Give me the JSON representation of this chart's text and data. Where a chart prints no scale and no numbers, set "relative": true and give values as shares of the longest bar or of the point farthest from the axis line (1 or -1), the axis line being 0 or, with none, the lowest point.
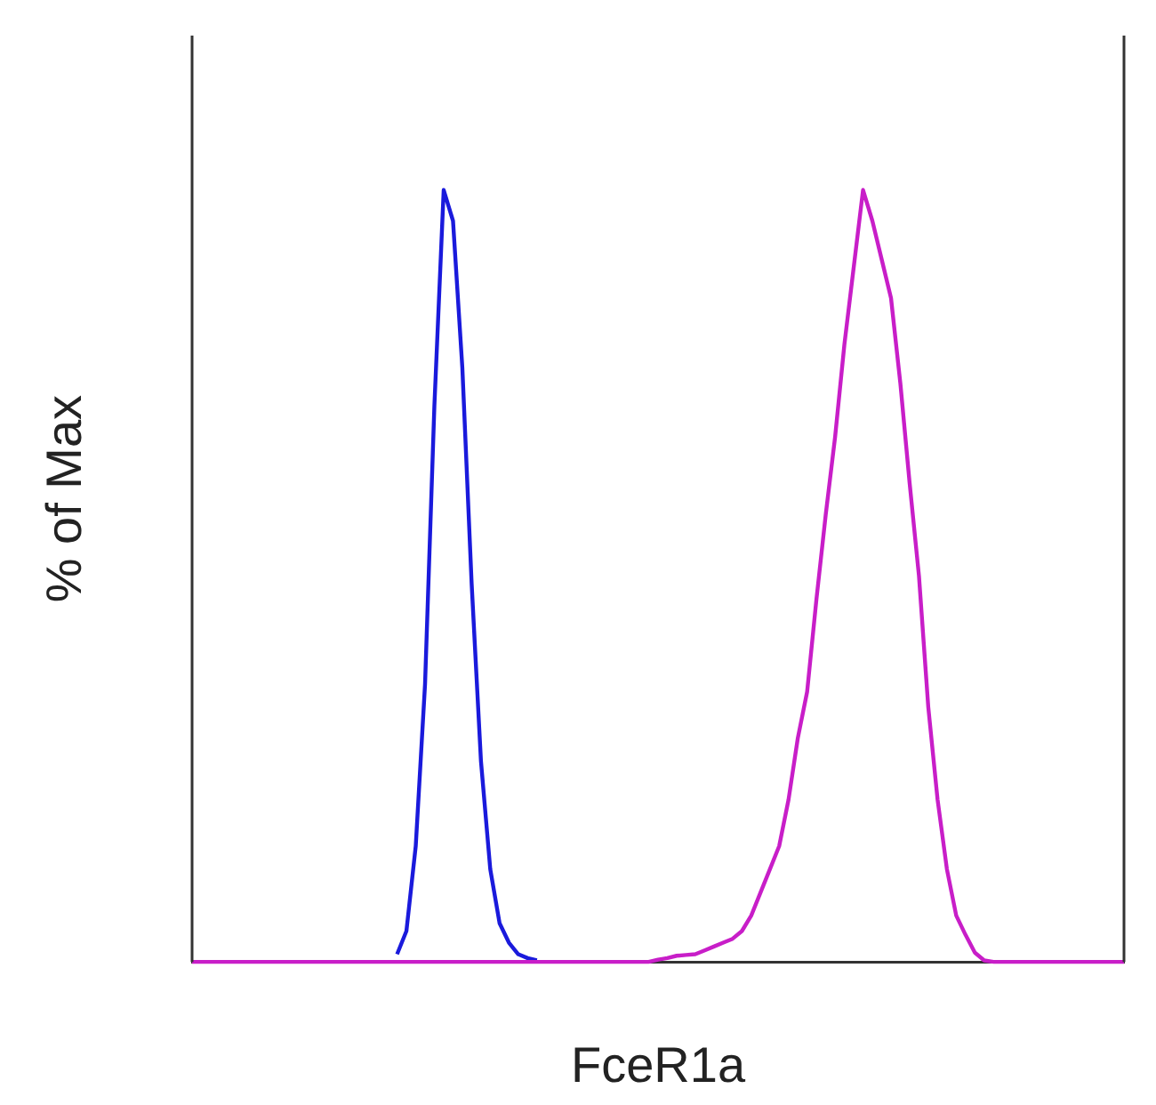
{
  "chart_data": {
    "type": "line",
    "relative": true,
    "xlabel": "FceR1a",
    "ylabel": "% of Max",
    "grid": false,
    "legend": false,
    "marker": "none",
    "line_style": "solid",
    "categories": [
      null,
      null,
      null,
      null,
      null,
      null,
      null,
      null,
      null,
      null,
      null,
      null,
      null,
      null,
      null,
      null,
      null,
      null,
      null,
      null,
      null,
      null,
      null,
      null,
      null,
      null,
      null,
      null,
      null,
      null,
      null,
      null,
      null,
      null,
      null,
      null,
      null,
      null,
      null,
      null,
      null,
      null,
      null,
      null,
      null,
      null,
      null,
      null,
      null,
      null,
      null,
      null,
      null,
      null,
      null,
      null,
      null,
      null,
      null,
      null,
      null,
      null,
      null,
      null,
      null,
      null,
      null,
      null,
      null,
      null,
      null,
      null,
      null,
      null,
      null,
      null,
      null,
      null,
      null,
      null,
      null,
      null,
      null,
      null,
      null,
      null,
      null,
      null,
      null,
      null,
      null,
      null,
      null,
      null,
      null,
      null,
      null,
      null,
      null,
      null,
      null
    ],
    "series": [
      {
        "color": "#1a1adc",
        "values": [
          null,
          null,
          null,
          null,
          null,
          null,
          null,
          null,
          null,
          null,
          null,
          null,
          null,
          null,
          null,
          null,
          null,
          null,
          null,
          null,
          null,
          null,
          0.01,
          0.04,
          0.15,
          0.36,
          0.72,
          1,
          0.96,
          0.77,
          0.49,
          0.26,
          0.12,
          0.05,
          0.025,
          0.01,
          0.005,
          0.002,
          null,
          null,
          null,
          null,
          null,
          null,
          null,
          null,
          null,
          null,
          null,
          null,
          null,
          null,
          null,
          null,
          null,
          null,
          null,
          null,
          null,
          null,
          null,
          null,
          null,
          null,
          null,
          null,
          null,
          null,
          null,
          null,
          null,
          null,
          null,
          null,
          null,
          null,
          null,
          null,
          null,
          null,
          null,
          null,
          null,
          null,
          null,
          null,
          null,
          null,
          null,
          null,
          null,
          null,
          null,
          null,
          null,
          null,
          null,
          null,
          null,
          null,
          null
        ]
      },
      {
        "color": "#c81ec8",
        "values": [
          0,
          0,
          0,
          0,
          0,
          0,
          0,
          0,
          0,
          0,
          0,
          0,
          0,
          0,
          0,
          0,
          0,
          0,
          0,
          0,
          0,
          0,
          0,
          0,
          0,
          0,
          0,
          0,
          0,
          0,
          0,
          0,
          0,
          0,
          0,
          0,
          0,
          0,
          0,
          0,
          0,
          0,
          0,
          0,
          0,
          0,
          0,
          0,
          0,
          0,
          0.003,
          0.005,
          0.008,
          0.009,
          0.01,
          0.015,
          0.02,
          0.025,
          0.03,
          0.04,
          0.06,
          0.09,
          0.12,
          0.15,
          0.21,
          0.29,
          0.35,
          0.47,
          0.58,
          0.68,
          0.8,
          0.9,
          1,
          0.96,
          0.91,
          0.86,
          0.75,
          0.62,
          0.5,
          0.33,
          0.21,
          0.12,
          0.06,
          0.035,
          0.012,
          0.002,
          0,
          0,
          0,
          0,
          0,
          0,
          0,
          0,
          0,
          0,
          0,
          0,
          0,
          0,
          0
        ]
      }
    ]
  }
}
